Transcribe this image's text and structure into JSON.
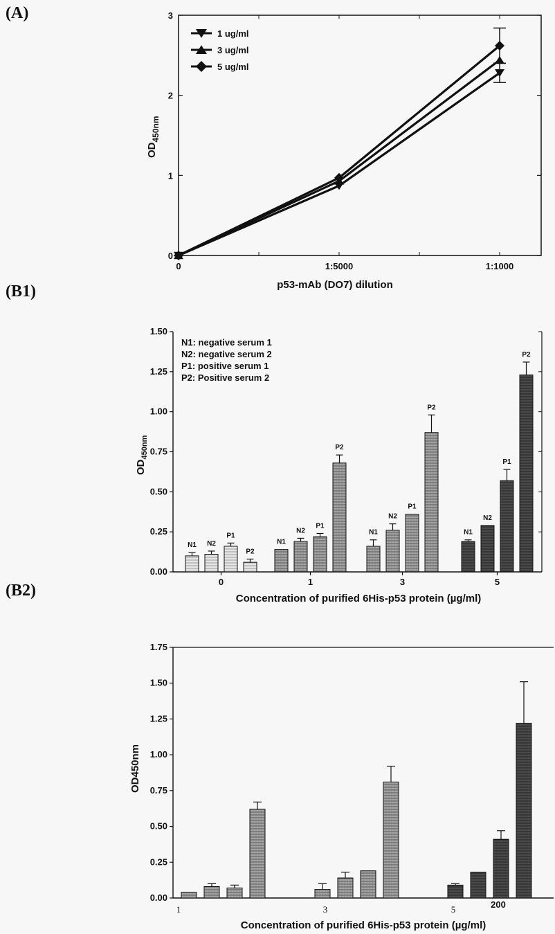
{
  "labels": {
    "a": "(A)",
    "b1": "(B1)",
    "b2": "(B2)"
  },
  "chart_data": [
    {
      "type": "line",
      "x_ticks": [
        "0",
        "1:5000",
        "1:1000"
      ],
      "xlabel": "p53-mAb (DO7) dilution",
      "ylabel": "OD",
      "ylabel_sub": "450nm",
      "ylim": [
        0,
        3
      ],
      "y_ticks": [
        "0",
        "1",
        "2",
        "3"
      ],
      "series": [
        {
          "name": "1 ug/ml",
          "marker": "triangle-down",
          "values": [
            0,
            0.87,
            2.28
          ],
          "error": [
            0,
            0,
            0.12
          ]
        },
        {
          "name": "3 ug/ml",
          "marker": "triangle-up",
          "values": [
            0,
            0.93,
            2.44
          ],
          "error": [
            0,
            0,
            0
          ]
        },
        {
          "name": "5 ug/ml",
          "marker": "diamond",
          "values": [
            0,
            0.97,
            2.62
          ],
          "error": [
            0,
            0,
            0.22
          ]
        }
      ]
    },
    {
      "type": "bar",
      "categories": [
        "0",
        "1",
        "3",
        "5"
      ],
      "series_names": [
        "N1",
        "N2",
        "P1",
        "P2"
      ],
      "legend": [
        "N1: negative serum 1",
        "N2: negative serum 2",
        "P1: positive serum 1",
        "P2: Positive serum 2"
      ],
      "values": [
        [
          0.1,
          0.11,
          0.16,
          0.06
        ],
        [
          0.14,
          0.19,
          0.22,
          0.68
        ],
        [
          0.16,
          0.26,
          0.36,
          0.87
        ],
        [
          0.19,
          0.29,
          0.57,
          1.23
        ]
      ],
      "errors": [
        [
          0.02,
          0.02,
          0.02,
          0.02
        ],
        [
          0.0,
          0.02,
          0.02,
          0.05
        ],
        [
          0.04,
          0.04,
          0.0,
          0.11
        ],
        [
          0.01,
          0.0,
          0.07,
          0.08
        ]
      ],
      "ylim": [
        0,
        1.5
      ],
      "y_ticks": [
        "0.00",
        "0.25",
        "0.50",
        "0.75",
        "1.00",
        "1.25",
        "1.50"
      ],
      "xlabel": "Concentration of purified 6His-p53 protein (µg/ml)",
      "ylabel": "OD",
      "ylabel_sub": "450nm"
    },
    {
      "type": "bar",
      "categories": [
        "1",
        "3",
        "5",
        "200"
      ],
      "values": [
        [
          0.04,
          0.08,
          0.07,
          0.62
        ],
        [
          0.06,
          0.14,
          0.19,
          0.81
        ],
        [
          0.09,
          0.18,
          0.41,
          1.22
        ]
      ],
      "errors": [
        [
          0.0,
          0.02,
          0.02,
          0.05
        ],
        [
          0.04,
          0.04,
          0.0,
          0.11
        ],
        [
          0.01,
          0.0,
          0.06,
          0.29
        ]
      ],
      "ylim": [
        0,
        1.75
      ],
      "y_ticks": [
        "0.00",
        "0.25",
        "0.50",
        "0.75",
        "1.00",
        "1.25",
        "1.50",
        "1.75"
      ],
      "xlabel": "Concentration of purified 6His-p53 protein (µg/ml)",
      "ylabel": "OD450nm"
    }
  ]
}
